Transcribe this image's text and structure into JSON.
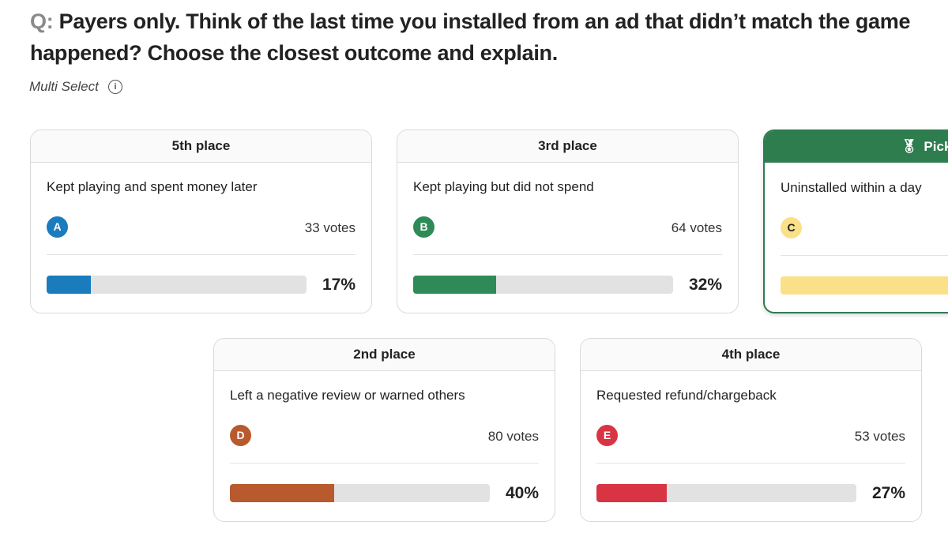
{
  "question": {
    "prefix": "Q:",
    "text": "Payers only. Think of the last time you installed from an ad that didn’t match the game",
    "text_line2": "happened? Choose the closest outcome and explain."
  },
  "select_type": "Multi Select",
  "options": [
    {
      "place": "5th place",
      "answer": "Kept playing and spent money later",
      "letter": "A",
      "votes": "33 votes",
      "percent": 17,
      "percent_label": "17%",
      "color": "#1a7bbd"
    },
    {
      "place": "3rd place",
      "answer": "Kept playing but did not spend",
      "letter": "B",
      "votes": "64 votes",
      "percent": 32,
      "percent_label": "32%",
      "color": "#2e8b57"
    },
    {
      "place": "PickFu",
      "answer": "Uninstalled within a day",
      "letter": "C",
      "color": "#fbe08a",
      "winner": true
    },
    {
      "place": "2nd place",
      "answer": "Left a negative review or warned others",
      "letter": "D",
      "votes": "80 votes",
      "percent": 40,
      "percent_label": "40%",
      "color": "#b85a2e"
    },
    {
      "place": "4th place",
      "answer": "Requested refund/chargeback",
      "letter": "E",
      "votes": "53 votes",
      "percent": 27,
      "percent_label": "27%",
      "color": "#d93444"
    }
  ]
}
